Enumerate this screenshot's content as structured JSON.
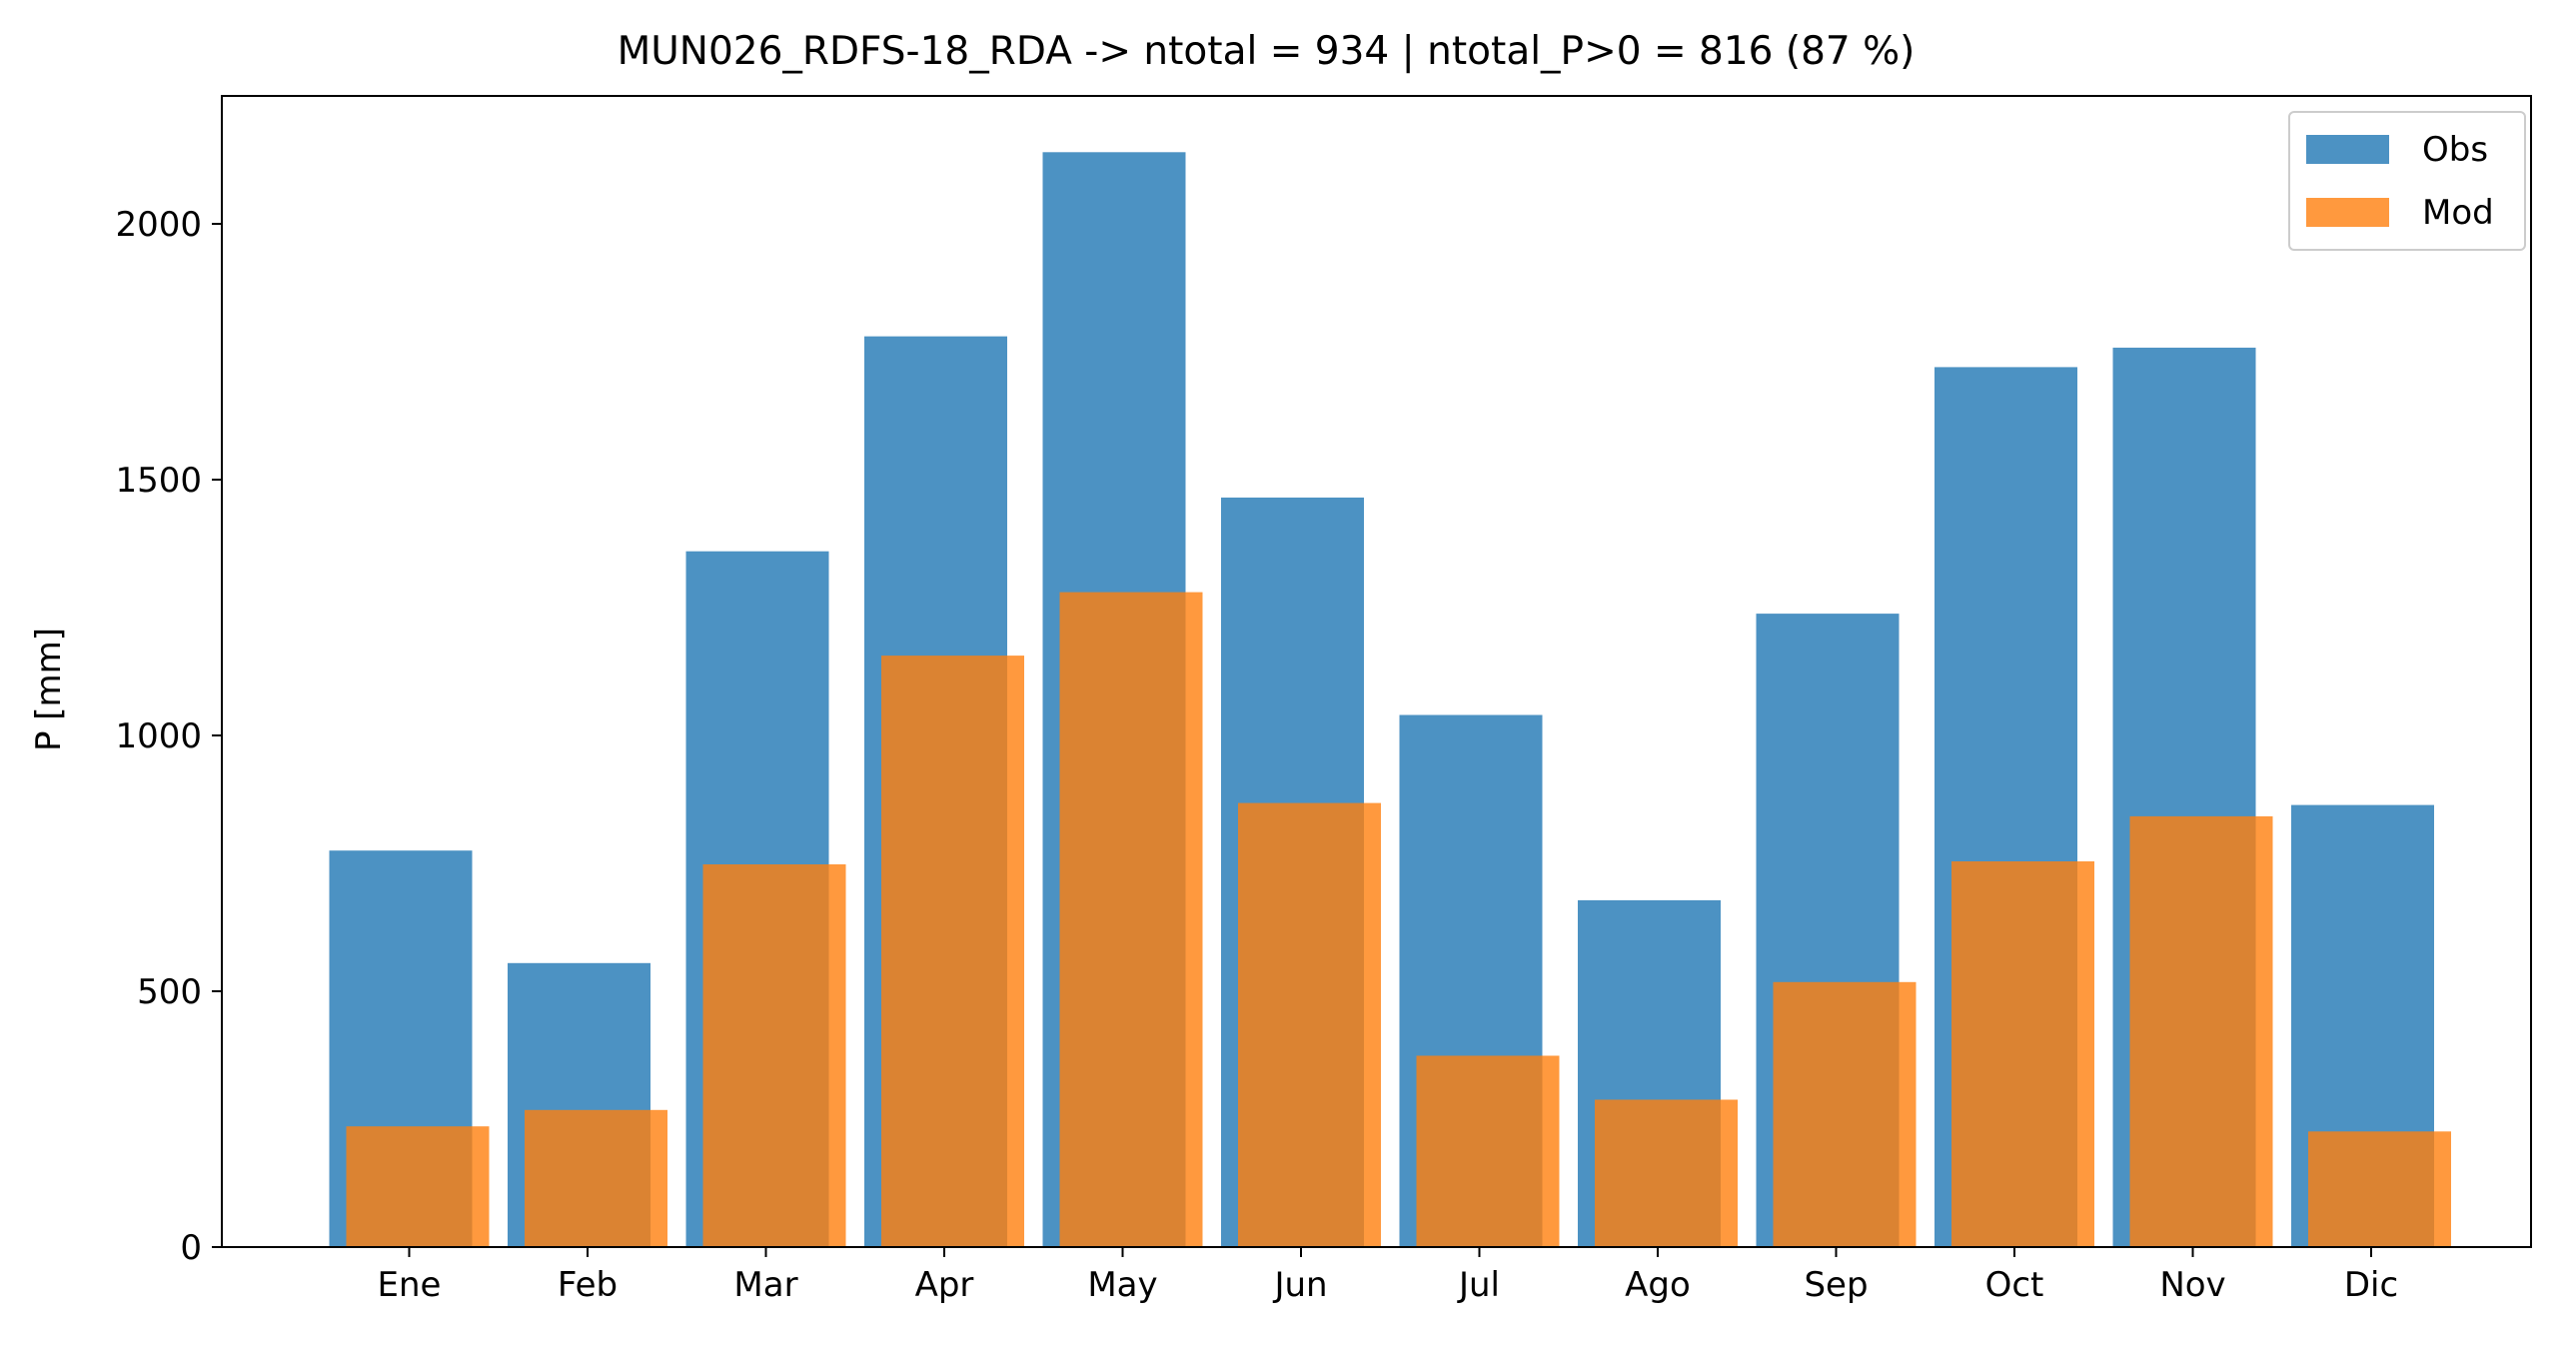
{
  "chart_data": {
    "type": "bar",
    "title": "MUN026_RDFS-18_RDA -> ntotal = 934 | ntotal_P>0 = 816 (87 %)",
    "xlabel": "",
    "ylabel": "P [mm]",
    "categories": [
      "Ene",
      "Feb",
      "Mar",
      "Apr",
      "May",
      "Jun",
      "Jul",
      "Ago",
      "Sep",
      "Oct",
      "Nov",
      "Dic"
    ],
    "series": [
      {
        "name": "Obs",
        "color": "#1f77b4",
        "values": [
          775,
          555,
          1360,
          1780,
          2140,
          1465,
          1040,
          678,
          1238,
          1720,
          1758,
          864
        ]
      },
      {
        "name": "Mod",
        "color": "#ff7f0e",
        "values": [
          236,
          268,
          748,
          1156,
          1280,
          868,
          374,
          288,
          518,
          754,
          842,
          226
        ]
      }
    ],
    "yticks": [
      0,
      500,
      1000,
      1500,
      2000
    ],
    "ylim": [
      0,
      2250
    ],
    "legend": "top-right",
    "grid": false
  }
}
